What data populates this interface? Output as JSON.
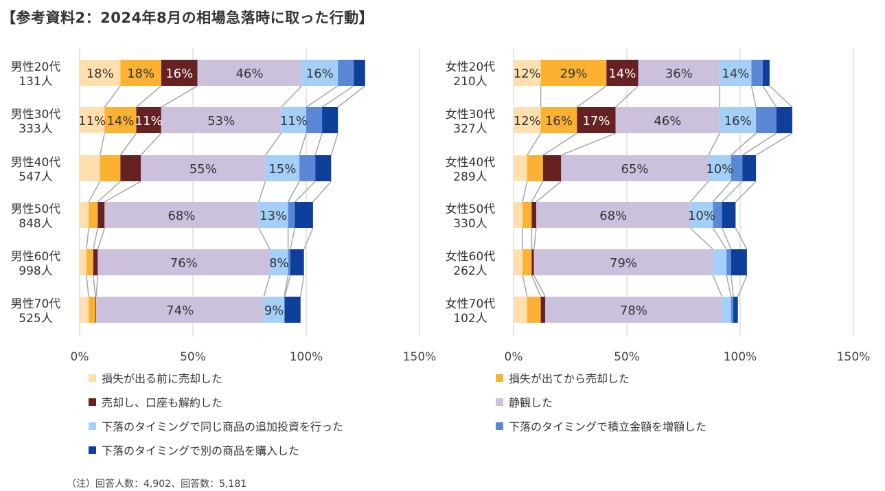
{
  "title": "【参考資料2：2024年8月の相場急落時に取った行動】",
  "note": "（注）回答人数：4,902、回答数：5,181",
  "chart_data": [
    {
      "type": "bar",
      "orientation": "horizontal",
      "stacked": true,
      "series_lines": true,
      "xlim": [
        0,
        150
      ],
      "xticks": [
        "0%",
        "50%",
        "100%",
        "150%"
      ],
      "grid": true,
      "categories": [
        [
          "男性20代",
          "131人"
        ],
        [
          "男性30代",
          "333人"
        ],
        [
          "男性40代",
          "547人"
        ],
        [
          "男性50代",
          "848人"
        ],
        [
          "男性60代",
          "998人"
        ],
        [
          "男性70代",
          "525人"
        ]
      ],
      "series": [
        {
          "name": "損失が出る前に売却した",
          "values": [
            18,
            11,
            9,
            4,
            3,
            4
          ],
          "labels": [
            "18%",
            "11%",
            null,
            null,
            null,
            null
          ]
        },
        {
          "name": "損失が出てから売却した",
          "values": [
            18,
            14,
            9,
            4,
            3,
            3
          ],
          "labels": [
            "18%",
            "14%",
            null,
            null,
            null,
            null
          ]
        },
        {
          "name": "売却し、口座も解約した",
          "values": [
            16,
            11,
            9,
            3,
            2,
            0.3
          ],
          "labels": [
            "16%",
            "11%",
            null,
            null,
            null,
            null
          ]
        },
        {
          "name": "静観した",
          "values": [
            46,
            53,
            55,
            68,
            76,
            74
          ],
          "labels": [
            "46%",
            "53%",
            "55%",
            "68%",
            "76%",
            "74%"
          ]
        },
        {
          "name": "下落のタイミングで同じ商品の追加投資を行った",
          "values": [
            16,
            11,
            15,
            13,
            8,
            9
          ],
          "labels": [
            "16%",
            "11%",
            "15%",
            "13%",
            "8%",
            "9%"
          ]
        },
        {
          "name": "下落のタイミングで積立金額を増額した",
          "values": [
            7,
            7,
            7,
            3,
            1,
            0.2
          ],
          "labels": [
            null,
            null,
            null,
            null,
            null,
            null
          ]
        },
        {
          "name": "下落のタイミングで別の商品を購入した",
          "values": [
            5,
            7,
            7,
            8,
            6,
            7
          ],
          "labels": [
            null,
            null,
            null,
            null,
            null,
            null
          ]
        }
      ]
    },
    {
      "type": "bar",
      "orientation": "horizontal",
      "stacked": true,
      "series_lines": true,
      "xlim": [
        0,
        150
      ],
      "xticks": [
        "0%",
        "50%",
        "100%",
        "150%"
      ],
      "grid": true,
      "categories": [
        [
          "女性20代",
          "210人"
        ],
        [
          "女性30代",
          "327人"
        ],
        [
          "女性40代",
          "289人"
        ],
        [
          "女性50代",
          "330人"
        ],
        [
          "女性60代",
          "262人"
        ],
        [
          "女性70代",
          "102人"
        ]
      ],
      "series": [
        {
          "name": "損失が出る前に売却した",
          "values": [
            12,
            12,
            6,
            4,
            4,
            6
          ],
          "labels": [
            "12%",
            "12%",
            null,
            null,
            null,
            null
          ]
        },
        {
          "name": "損失が出てから売却した",
          "values": [
            29,
            16,
            7,
            4,
            4,
            6
          ],
          "labels": [
            "29%",
            "16%",
            null,
            null,
            null,
            null
          ]
        },
        {
          "name": "売却し、口座も解約した",
          "values": [
            14,
            17,
            8,
            2,
            1,
            2
          ],
          "labels": [
            "14%",
            "17%",
            null,
            null,
            null,
            null
          ]
        },
        {
          "name": "静観した",
          "values": [
            36,
            46,
            65,
            68,
            79,
            78
          ],
          "labels": [
            "36%",
            "46%",
            "65%",
            "68%",
            "79%",
            "78%"
          ]
        },
        {
          "name": "下落のタイミングで同じ商品の追加投資を行った",
          "values": [
            14,
            16,
            10,
            10,
            6,
            4
          ],
          "labels": [
            "14%",
            "16%",
            "10%",
            "10%",
            null,
            null
          ]
        },
        {
          "name": "下落のタイミングで積立金額を増額した",
          "values": [
            5,
            9,
            5,
            4,
            2,
            1
          ],
          "labels": [
            null,
            null,
            null,
            null,
            null,
            null
          ]
        },
        {
          "name": "下落のタイミングで別の商品を購入した",
          "values": [
            3,
            7,
            6,
            6,
            7,
            2
          ],
          "labels": [
            null,
            null,
            null,
            null,
            null,
            null
          ]
        }
      ]
    }
  ],
  "colors": [
    "#FFDFAE",
    "#FBB232",
    "#662222",
    "#CBC1DC",
    "#A4D0F7",
    "#5A88D6",
    "#0D3F9B"
  ],
  "label_colors": [
    "#333333",
    "#333333",
    "#FFFFFF",
    "#333333",
    "#333333",
    "#333333",
    "#333333"
  ],
  "legend": {
    "position": "bottom",
    "items": [
      "損失が出る前に売却した",
      "損失が出てから売却した",
      "売却し、口座も解約した",
      "静観した",
      "下落のタイミングで同じ商品の追加投資を行った",
      "下落のタイミングで積立金額を増額した",
      "下落のタイミングで別の商品を購入した"
    ]
  }
}
